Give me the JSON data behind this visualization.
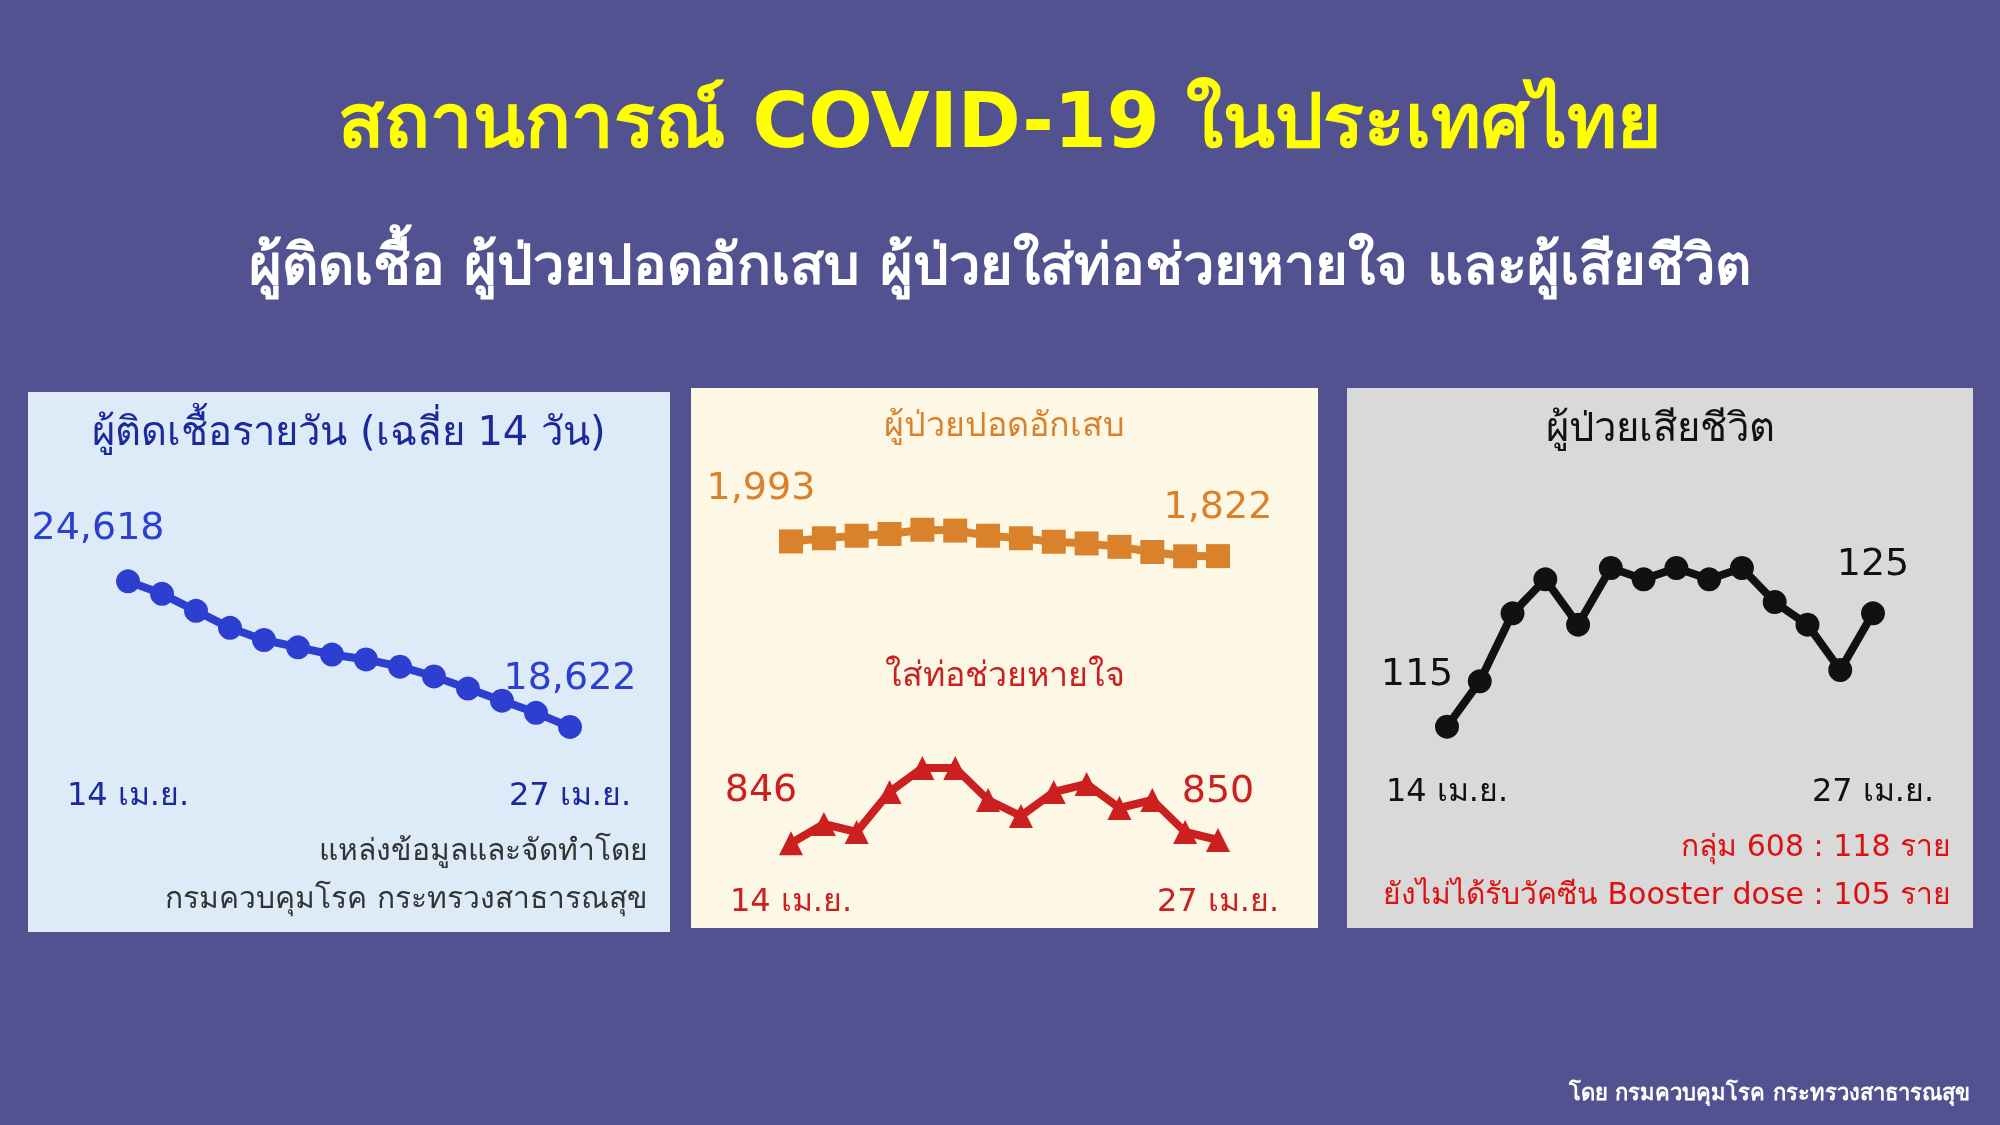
{
  "chart_data": [
    {
      "type": "other",
      "title": "สถานการณ์ COVID-19 ในประเทศไทย",
      "subtitle": "ผู้ติดเชื้อ ผู้ป่วยปอดอักเสบ ผู้ป่วยใส่ท่อช่วยหายใจ และผู้เสียชีวิต",
      "annotations": [
        "โดย กรมควบคุมโรค กระทรวงสาธารณสุข"
      ]
    },
    {
      "type": "line",
      "title": "ผู้ติดเชื้อรายวัน (เฉลี่ย 14 วัน)",
      "categories": [
        "14 เม.ย.",
        null,
        null,
        null,
        null,
        null,
        null,
        null,
        null,
        null,
        null,
        null,
        null,
        "27 เม.ย."
      ],
      "series": [
        {
          "color": "#2c3fd0",
          "values": [
            24618,
            24100,
            23400,
            22700,
            22200,
            21900,
            21600,
            21400,
            21100,
            20700,
            20200,
            19700,
            19200,
            18622
          ],
          "value_labels": [
            "24,618",
            null,
            null,
            null,
            null,
            null,
            null,
            null,
            null,
            null,
            null,
            null,
            null,
            "18,622"
          ]
        }
      ],
      "marker": "circle",
      "grid": false,
      "tick_labels": "x",
      "line_style": "solid",
      "annotations": [
        "แหล่งข้อมูลและจัดทำโดย",
        "กรมควบคุมโรค กระทรวงสาธารณสุข"
      ]
    },
    {
      "type": "line",
      "title": "ผู้ป่วยปอดอักเสบ",
      "categories": [
        null,
        null,
        null,
        null,
        null,
        null,
        null,
        null,
        null,
        null,
        null,
        null,
        null,
        null
      ],
      "series": [
        {
          "color": "#d9822b",
          "values": [
            1993,
            2030,
            2060,
            2080,
            2130,
            2120,
            2060,
            2030,
            1990,
            1970,
            1930,
            1870,
            1820,
            1822
          ],
          "value_labels": [
            "1,993",
            null,
            null,
            null,
            null,
            null,
            null,
            null,
            null,
            null,
            null,
            null,
            null,
            "1,822"
          ]
        }
      ],
      "marker": "square",
      "grid": false,
      "tick_labels": "x",
      "line_style": "solid"
    },
    {
      "type": "line",
      "title": "ใส่ท่อช่วยหายใจ",
      "categories": [
        "14 เม.ย.",
        null,
        null,
        null,
        null,
        null,
        null,
        null,
        null,
        null,
        null,
        null,
        null,
        "27 เม.ย."
      ],
      "series": [
        {
          "color": "#cc1f1f",
          "values": [
            846,
            870,
            860,
            910,
            940,
            940,
            900,
            880,
            910,
            920,
            890,
            900,
            860,
            850
          ],
          "value_labels": [
            "846",
            null,
            null,
            null,
            null,
            null,
            null,
            null,
            null,
            null,
            null,
            null,
            null,
            "850"
          ]
        }
      ],
      "marker": "triangle",
      "grid": false,
      "tick_labels": "x",
      "line_style": "solid"
    },
    {
      "type": "line",
      "title": "ผู้ป่วยเสียชีวิต",
      "categories": [
        "14 เม.ย.",
        null,
        null,
        null,
        null,
        null,
        null,
        null,
        null,
        null,
        null,
        null,
        null,
        "27 เม.ย."
      ],
      "series": [
        {
          "color": "#111111",
          "values": [
            115,
            119,
            125,
            128,
            124,
            129,
            128,
            129,
            128,
            129,
            126,
            124,
            120,
            125
          ],
          "value_labels": [
            "115",
            null,
            null,
            null,
            null,
            null,
            null,
            null,
            null,
            null,
            null,
            null,
            null,
            "125"
          ]
        }
      ],
      "marker": "circle",
      "grid": false,
      "tick_labels": "x",
      "line_style": "solid",
      "annotations": [
        "กลุ่ม 608 : 118 ราย",
        "ยังไม่ได้รับวัคซีน Booster dose : 105 ราย"
      ]
    }
  ]
}
